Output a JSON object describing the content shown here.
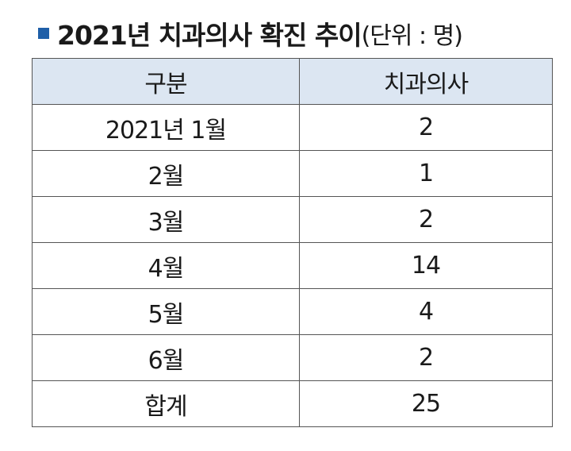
{
  "title": {
    "text": "2021년 치과의사 확진 추이",
    "unit": "(단위 : 명)"
  },
  "table": {
    "header": [
      "구분",
      "치과의사"
    ],
    "rows": [
      [
        "2021년 1월",
        2
      ],
      [
        "2월",
        1
      ],
      [
        "3월",
        2
      ],
      [
        "4월",
        14
      ],
      [
        "5월",
        4
      ],
      [
        "6월",
        2
      ],
      [
        "합계",
        25
      ]
    ]
  }
}
